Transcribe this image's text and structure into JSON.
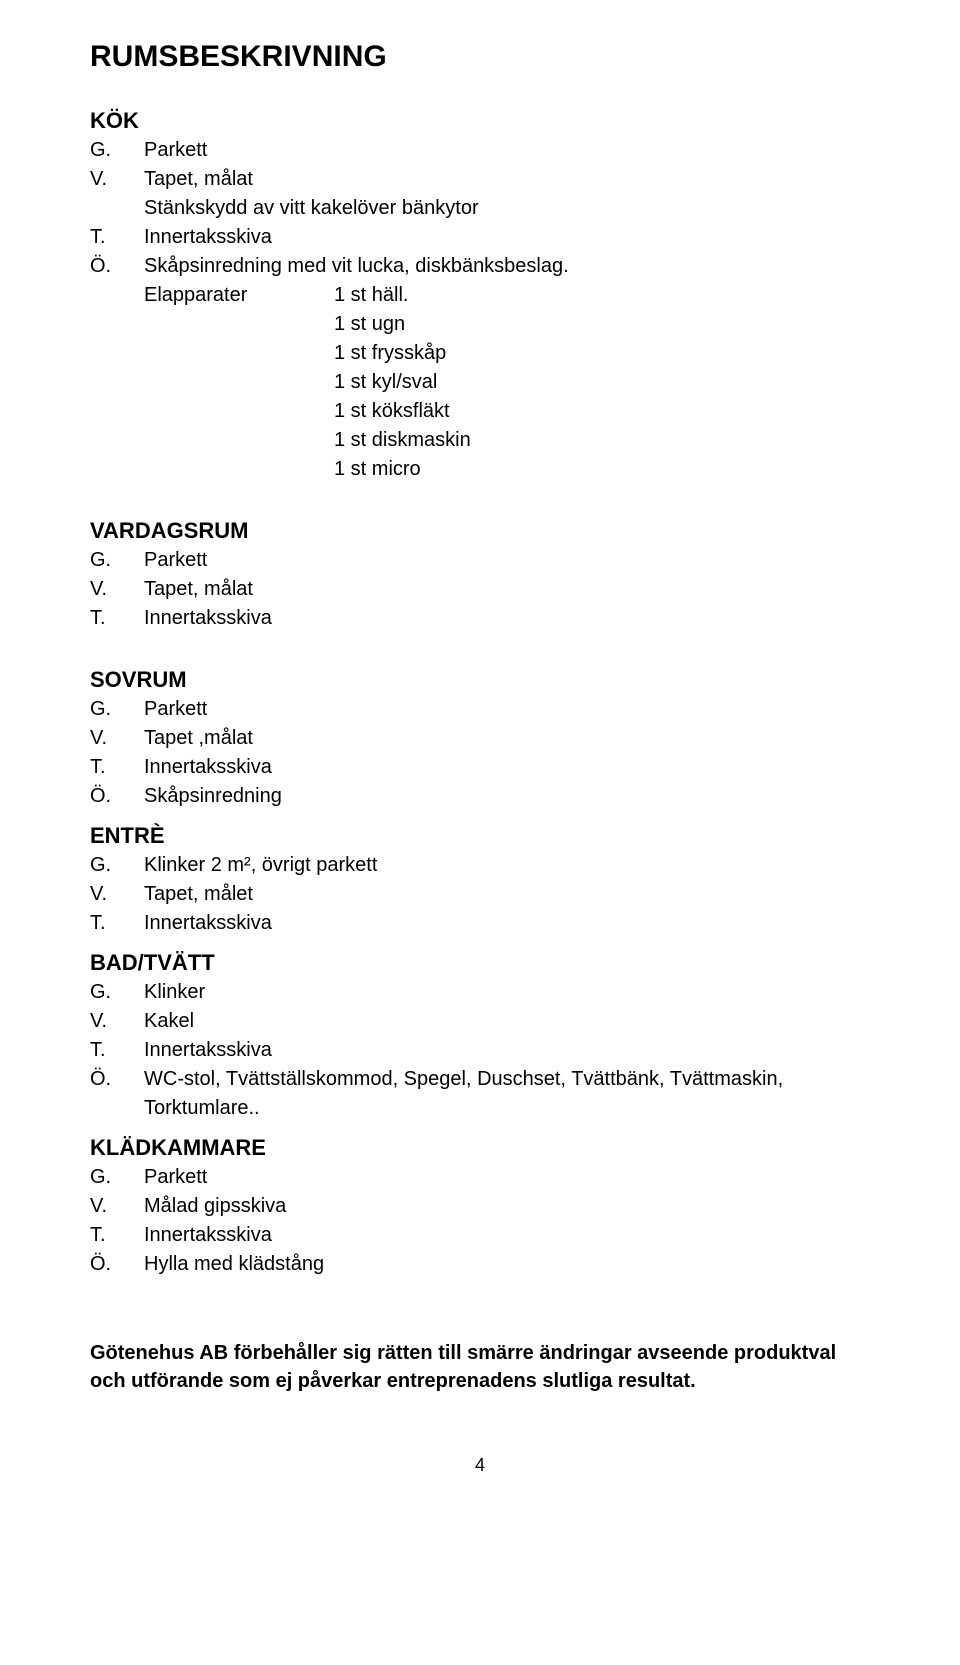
{
  "title": "RUMSBESKRIVNING",
  "kok": {
    "title": "KÖK",
    "g": "Parkett",
    "v": "Tapet, målat",
    "v_extra": "Stänkskydd av vitt kakelöver bänkytor",
    "t": "Innertaksskiva",
    "o": "Skåpsinredning med vit lucka, diskbänksbeslag.",
    "elapp_label": "Elapparater",
    "elapp_items": [
      "1 st häll.",
      "1 st ugn",
      "1 st frysskåp",
      "1 st kyl/sval",
      "1 st köksfläkt",
      "1 st diskmaskin",
      "1 st micro"
    ]
  },
  "vardagsrum": {
    "title": "VARDAGSRUM",
    "g": "Parkett",
    "v": "Tapet, målat",
    "t": "Innertaksskiva"
  },
  "sovrum": {
    "title": "SOVRUM",
    "g": "Parkett",
    "v": "Tapet ,målat",
    "t": "Innertaksskiva",
    "o": "Skåpsinredning"
  },
  "entre": {
    "title": "ENTRÈ",
    "g": "Klinker 2 m², övrigt parkett",
    "v": "Tapet, målet",
    "t": "Innertaksskiva"
  },
  "badtvatt": {
    "title": "BAD/TVÄTT",
    "g": "Klinker",
    "v": "Kakel",
    "t": "Innertaksskiva",
    "o": "WC-stol, Tvättställskommod, Spegel, Duschset, Tvättbänk, Tvättmaskin, Torktumlare.."
  },
  "kladkammare": {
    "title": "KLÄDKAMMARE",
    "g": "Parkett",
    "v": "Målad gipsskiva",
    "t": "Innertaksskiva",
    "o": "Hylla med klädstång"
  },
  "labels": {
    "g": "G.",
    "v": "V.",
    "t": "T.",
    "o": "Ö."
  },
  "footer": "Götenehus AB förbehåller sig rätten till smärre ändringar avseende produktval och utförande som ej påverkar entreprenadens slutliga resultat.",
  "page_number": "4"
}
